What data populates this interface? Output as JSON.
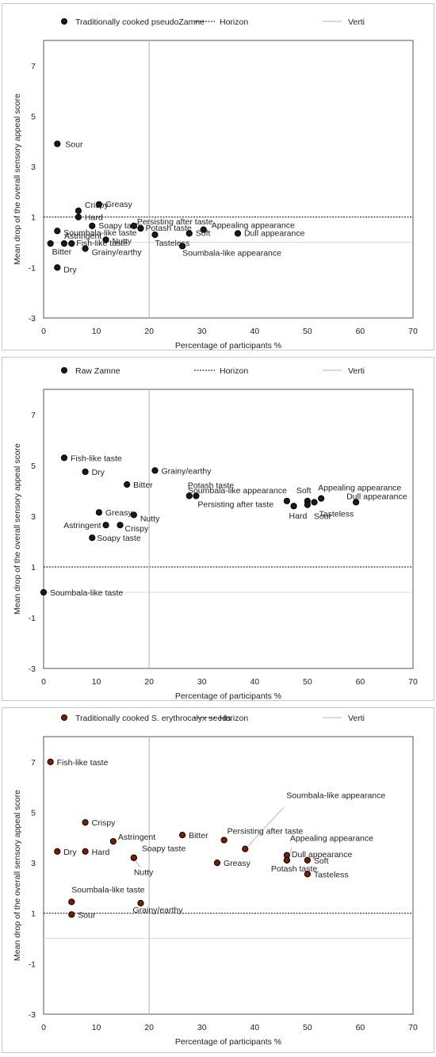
{
  "chart_data": [
    {
      "type": "scatter",
      "legend": [
        {
          "name": "Traditionally cooked pseudoZamne",
          "style": "marker"
        },
        {
          "name": "Horizon",
          "style": "dashed"
        },
        {
          "name": "Verti",
          "style": "solid-gray"
        }
      ],
      "xlabel": "Percentage of participants %",
      "ylabel": "Mean drop of the overall sensory appeal score",
      "xlim": [
        0,
        70
      ],
      "ylim": [
        -3,
        8
      ],
      "xticks": [
        "0",
        "10",
        "20",
        "30",
        "40",
        "50",
        "60",
        "70"
      ],
      "yticks": [
        "-3",
        "-1",
        "1",
        "3",
        "5",
        "7"
      ],
      "horizon_y": 1,
      "verti_x": 20,
      "verti_ylim": [
        -3,
        8
      ],
      "horizon_xlim": [
        0,
        70
      ],
      "marker_color": "#1a1a1a",
      "points": [
        {
          "label": "Sour",
          "x": 2.6,
          "y": 3.9
        },
        {
          "label": "Greasy",
          "x": 10.5,
          "y": 1.5
        },
        {
          "label": "Crispy",
          "x": 6.6,
          "y": 1.25
        },
        {
          "label": "Hard",
          "x": 6.6,
          "y": 1.0
        },
        {
          "label": "Soapy taste",
          "x": 9.2,
          "y": 0.65
        },
        {
          "label": "Persisting after taste",
          "x": 17.1,
          "y": 0.65
        },
        {
          "label": "Potash taste",
          "x": 18.4,
          "y": 0.55
        },
        {
          "label": "Soumbala-like taste",
          "x": 2.6,
          "y": 0.45
        },
        {
          "label": "Nutty",
          "x": 11.8,
          "y": 0.1
        },
        {
          "label": "Astringent",
          "x": 3.9,
          "y": -0.05
        },
        {
          "label": "Fish-like taste",
          "x": 5.3,
          "y": -0.05
        },
        {
          "label": "Bitter",
          "x": 1.3,
          "y": -0.05
        },
        {
          "label": "Grainy/earthy",
          "x": 7.9,
          "y": -0.25
        },
        {
          "label": "Dry",
          "x": 2.6,
          "y": -1.0
        },
        {
          "label": "Tasteless",
          "x": 21.1,
          "y": 0.3
        },
        {
          "label": "Soft",
          "x": 27.6,
          "y": 0.35
        },
        {
          "label": "Appealing appearance",
          "x": 30.3,
          "y": 0.5
        },
        {
          "label": "Dull appearance",
          "x": 36.8,
          "y": 0.35
        },
        {
          "label": "Soumbala-like appearance",
          "x": 26.3,
          "y": -0.15
        }
      ]
    },
    {
      "type": "scatter",
      "legend": [
        {
          "name": "Raw Zamne",
          "style": "marker"
        },
        {
          "name": "Horizon",
          "style": "dashed"
        },
        {
          "name": "Verti",
          "style": "solid-gray"
        }
      ],
      "xlabel": "Percentage of participants %",
      "ylabel": "Mean drop of the overall sensory appeal score",
      "xlim": [
        0,
        70
      ],
      "ylim": [
        -3,
        8
      ],
      "xticks": [
        "0",
        "10",
        "20",
        "30",
        "40",
        "50",
        "60",
        "70"
      ],
      "yticks": [
        "-3",
        "-1",
        "1",
        "3",
        "5",
        "7"
      ],
      "horizon_y": 1,
      "verti_x": 20,
      "verti_ylim": [
        -3,
        8
      ],
      "horizon_xlim": [
        0,
        70
      ],
      "marker_color": "#1a1a1a",
      "points": [
        {
          "label": "Fish-like taste",
          "x": 3.9,
          "y": 5.3
        },
        {
          "label": "Dry",
          "x": 7.9,
          "y": 4.75
        },
        {
          "label": "Grainy/earthy",
          "x": 21.1,
          "y": 4.8
        },
        {
          "label": "Bitter",
          "x": 15.8,
          "y": 4.25
        },
        {
          "label": "Greasy",
          "x": 10.5,
          "y": 3.15
        },
        {
          "label": "Nutty",
          "x": 17.1,
          "y": 3.05
        },
        {
          "label": "Astringent",
          "x": 11.8,
          "y": 2.65
        },
        {
          "label": "Crispy",
          "x": 14.5,
          "y": 2.65
        },
        {
          "label": "Soapy taste",
          "x": 9.2,
          "y": 2.15
        },
        {
          "label": "Potash taste",
          "x": 27.6,
          "y": 3.8
        },
        {
          "label": "Persisting after taste",
          "x": 28.9,
          "y": 3.8
        },
        {
          "label": "Soumbala-like appearance",
          "x": 46.1,
          "y": 3.6
        },
        {
          "label": "Hard",
          "x": 47.4,
          "y": 3.4
        },
        {
          "label": "Soft",
          "x": 50.0,
          "y": 3.6
        },
        {
          "label": "Sour",
          "x": 50.0,
          "y": 3.45
        },
        {
          "label": "Tasteless",
          "x": 51.3,
          "y": 3.55
        },
        {
          "label": "Appealing appearance",
          "x": 52.6,
          "y": 3.7
        },
        {
          "label": "Dull appearance",
          "x": 59.2,
          "y": 3.55
        },
        {
          "label": "Soumbala-like taste",
          "x": 0.0,
          "y": 0.0
        }
      ]
    },
    {
      "type": "scatter",
      "legend": [
        {
          "name": "Traditionally cooked S. erythrocalyx seeds",
          "style": "marker"
        },
        {
          "name": "Horizon",
          "style": "dashed"
        },
        {
          "name": "Verti",
          "style": "solid-gray"
        }
      ],
      "xlabel": "Percentage of participants %",
      "ylabel": "Mean drop of the overall sensory appeal score",
      "xlim": [
        0,
        70
      ],
      "ylim": [
        -3,
        8
      ],
      "xticks": [
        "0",
        "10",
        "20",
        "30",
        "40",
        "50",
        "60",
        "70"
      ],
      "yticks": [
        "-3",
        "-1",
        "1",
        "3",
        "5",
        "7"
      ],
      "horizon_y": 1,
      "verti_x": 20,
      "verti_ylim": [
        -3,
        8
      ],
      "horizon_xlim": [
        0,
        70
      ],
      "marker_color": "#7a1e00",
      "points": [
        {
          "label": "Fish-like taste",
          "x": 1.3,
          "y": 7.0
        },
        {
          "label": "Crispy",
          "x": 7.9,
          "y": 4.6
        },
        {
          "label": "Astringent",
          "x": 13.2,
          "y": 3.85
        },
        {
          "label": "Bitter",
          "x": 26.3,
          "y": 4.1
        },
        {
          "label": "Dry",
          "x": 2.6,
          "y": 3.45
        },
        {
          "label": "Hard",
          "x": 7.9,
          "y": 3.45
        },
        {
          "label": "Soapy taste",
          "x": 17.1,
          "y": 3.2
        },
        {
          "label": "Nutty",
          "x": 17.1,
          "y": 3.2
        },
        {
          "label": "Greasy",
          "x": 32.9,
          "y": 3.0
        },
        {
          "label": "Persisting after taste",
          "x": 34.2,
          "y": 3.9
        },
        {
          "label": "Soumbala-like appearance",
          "x": 38.2,
          "y": 3.55
        },
        {
          "label": "Appealing appearance",
          "x": 46.1,
          "y": 3.3
        },
        {
          "label": "Dull appearance",
          "x": 46.1,
          "y": 3.1
        },
        {
          "label": "Potash taste",
          "x": 46.1,
          "y": 3.1
        },
        {
          "label": "Soft",
          "x": 50.0,
          "y": 3.1
        },
        {
          "label": "Tasteless",
          "x": 50.0,
          "y": 2.55
        },
        {
          "label": "Soumbala-like taste",
          "x": 5.3,
          "y": 1.45
        },
        {
          "label": "Grainy/earthy",
          "x": 18.4,
          "y": 1.4
        },
        {
          "label": "Sour",
          "x": 5.3,
          "y": 0.95
        }
      ]
    }
  ]
}
